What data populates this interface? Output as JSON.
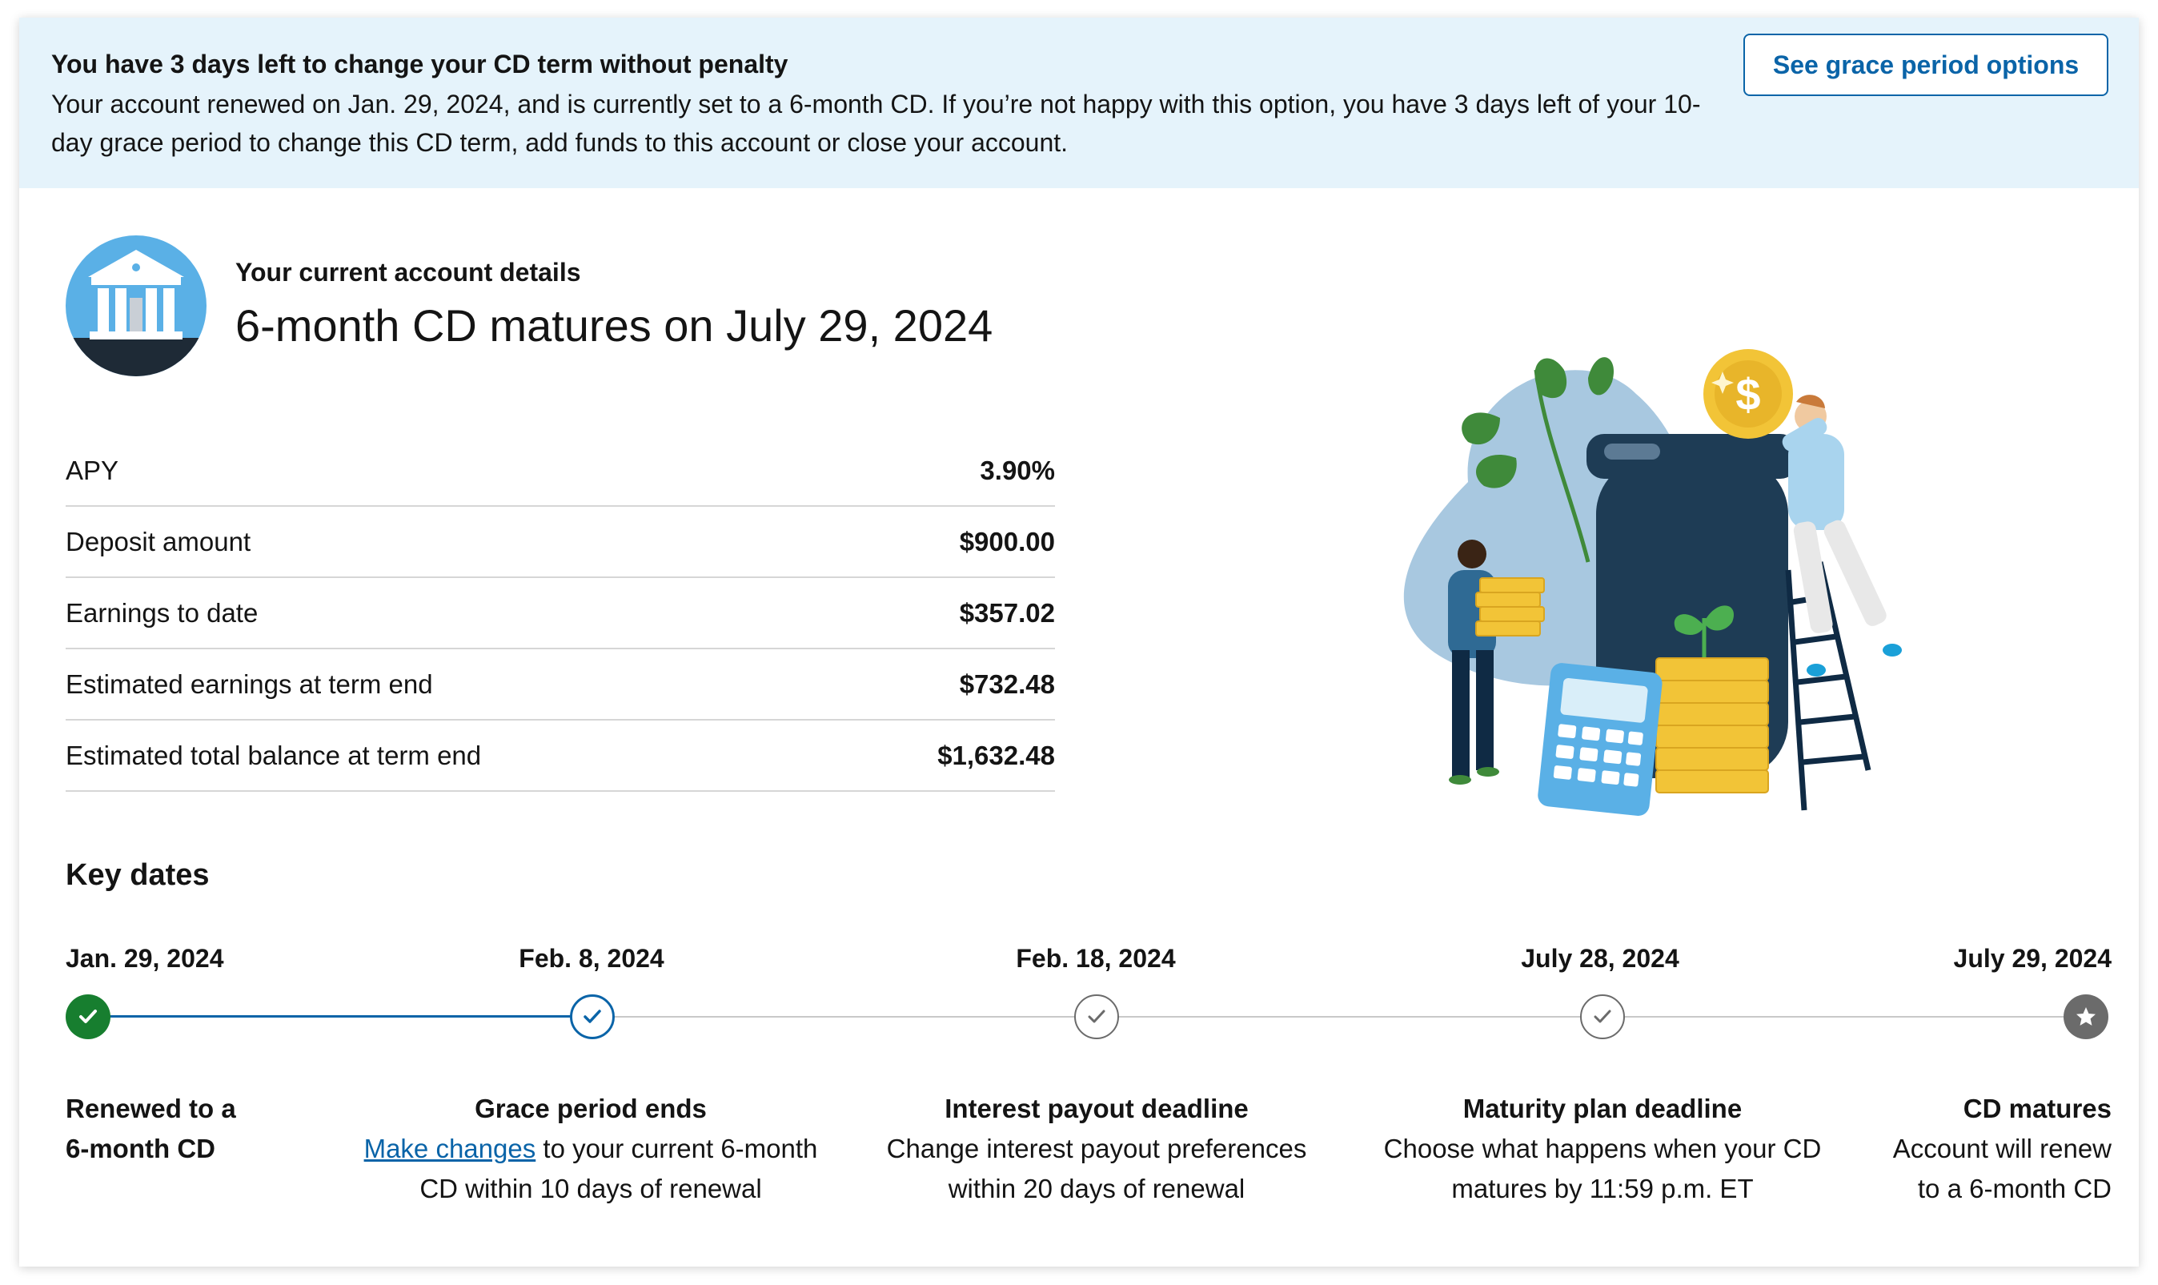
{
  "banner": {
    "title": "You have 3 days left to change your CD term without penalty",
    "text": "Your account renewed on Jan. 29, 2024, and is currently set to a 6-month CD. If you’re not happy with this option, you have 3 days left of your 10-day grace period to change this CD term, add funds to this account or close your account.",
    "button_label": "See grace period options"
  },
  "account": {
    "label": "Your current account details",
    "title": "6-month CD matures on July 29, 2024"
  },
  "details": [
    {
      "label": "APY",
      "value": "3.90%"
    },
    {
      "label": "Deposit amount",
      "value": "$900.00"
    },
    {
      "label": "Earnings to date",
      "value": "$357.02"
    },
    {
      "label": "Estimated earnings at term end",
      "value": "$732.48"
    },
    {
      "label": "Estimated total balance at term end",
      "value": "$1,632.48"
    }
  ],
  "key_dates": {
    "title": "Key dates",
    "items": [
      {
        "date": "Jan. 29, 2024",
        "heading": "Renewed to a",
        "heading2": "6-month CD",
        "status": "complete"
      },
      {
        "date": "Feb. 8, 2024",
        "heading": "Grace period ends",
        "link": "Make changes",
        "desc_after_link": " to your current 6-month",
        "desc2": "CD within 10 days of renewal",
        "status": "current"
      },
      {
        "date": "Feb. 18, 2024",
        "heading": "Interest payout deadline",
        "desc1": "Change interest payout preferences",
        "desc2": "within 20 days of renewal",
        "status": "upcoming"
      },
      {
        "date": "July 28, 2024",
        "heading": "Maturity plan deadline",
        "desc1": "Choose what happens when your CD",
        "desc2": "matures by 11:59 p.m. ET",
        "status": "upcoming"
      },
      {
        "date": "July 29, 2024",
        "heading": "CD matures",
        "desc1": "Account will renew",
        "desc2": "to a 6-month CD",
        "status": "final"
      }
    ]
  },
  "colors": {
    "banner_bg": "#e5f3fb",
    "accent_blue": "#0a64a8",
    "complete_green": "#177e2f",
    "upcoming_gray": "#6b6b6b"
  },
  "icons": {
    "bank": "bank-building-icon",
    "complete": "check-icon",
    "upcoming": "check-outline-icon",
    "final": "star-icon"
  }
}
